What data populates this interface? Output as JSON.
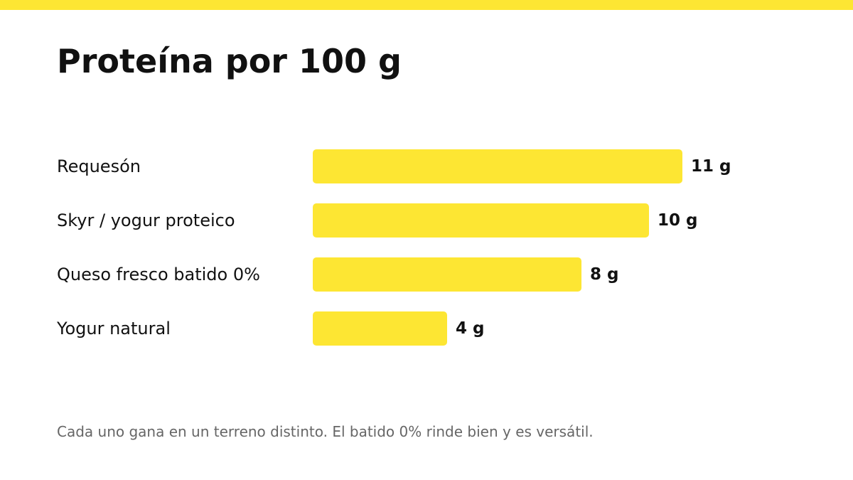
{
  "title": "Proteína por 100 g",
  "footnote": "Cada uno gana en un terreno distinto. El batido 0% rinde bien y es versátil.",
  "colors": {
    "accent": "#FDE633",
    "text": "#111111",
    "muted": "#666666"
  },
  "chart_data": {
    "type": "bar",
    "orientation": "horizontal",
    "title": "Proteína por 100 g",
    "xlabel": "",
    "ylabel": "",
    "unit": "g",
    "categories": [
      "Requesón",
      "Skyr / yogur proteico",
      "Queso fresco batido 0%",
      "Yogur natural"
    ],
    "values": [
      11,
      10,
      8,
      4
    ],
    "value_labels": [
      "11 g",
      "10 g",
      "8 g",
      "4 g"
    ],
    "xlim": [
      0,
      11
    ],
    "grid": false,
    "legend": "none"
  }
}
